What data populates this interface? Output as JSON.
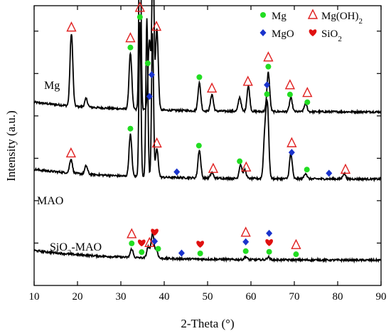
{
  "chart_data": {
    "type": "line",
    "xlabel": "2-Theta (°)",
    "ylabel": "Intensity (a.u.)",
    "xlim": [
      10,
      90
    ],
    "x_ticks": [
      10,
      20,
      30,
      40,
      50,
      60,
      70,
      80,
      90
    ],
    "y_ticks_labeled": false,
    "legend": {
      "placement": "top-right",
      "entries": [
        {
          "name": "Mg",
          "marker": "circle",
          "color": "#22dd22"
        },
        {
          "name": "Mg(OH)2",
          "name_base": "Mg(OH)",
          "name_sub": "2",
          "marker": "triangle-open",
          "color": "#e02020"
        },
        {
          "name": "MgO",
          "marker": "diamond",
          "color": "#1a33cc"
        },
        {
          "name": "SiO2",
          "name_base": "SiO",
          "name_sub": "2",
          "marker": "heart",
          "color": "#e01010"
        }
      ]
    },
    "series": [
      {
        "name": "Mg",
        "label_base": "Mg",
        "label_sub": "",
        "baseline": 0.62,
        "peaks": [
          [
            18.6,
            0.26
          ],
          [
            22.0,
            0.03
          ],
          [
            32.2,
            0.2
          ],
          [
            34.4,
            0.77
          ],
          [
            36.6,
            0.25
          ],
          [
            37.4,
            0.58
          ],
          [
            38.3,
            0.29
          ],
          [
            48.1,
            0.1
          ],
          [
            51.0,
            0.06
          ],
          [
            57.4,
            0.05
          ],
          [
            59.4,
            0.09
          ],
          [
            64.0,
            0.14
          ],
          [
            69.2,
            0.05
          ],
          [
            72.6,
            0.03
          ]
        ],
        "markers": [
          {
            "x": 32.2,
            "types": [
              "Mg(OH)2",
              "Mg"
            ]
          },
          {
            "x": 34.4,
            "types": [
              "Mg"
            ]
          },
          {
            "x": 36.6,
            "types": [
              "MgO"
            ],
            "below": true
          },
          {
            "x": 37.3,
            "types": [
              "Mg"
            ]
          },
          {
            "x": 18.6,
            "types": [
              "Mg(OH)2"
            ]
          },
          {
            "x": 38.2,
            "types": [
              "Mg(OH)2"
            ]
          },
          {
            "x": 48.1,
            "types": [
              "Mg"
            ]
          },
          {
            "x": 51.0,
            "types": [
              "Mg(OH)2"
            ]
          },
          {
            "x": 59.3,
            "types": [
              "Mg(OH)2"
            ]
          },
          {
            "x": 64.0,
            "types": [
              "Mg(OH)2",
              "Mg"
            ]
          },
          {
            "x": 69.0,
            "types": [
              "Mg(OH)2",
              "Mg"
            ]
          },
          {
            "x": 73.0,
            "types": [
              "Mg(OH)2",
              "Mg"
            ]
          }
        ]
      },
      {
        "name": "MAO",
        "label_base": "MAO",
        "label_sub": "",
        "baseline": 0.38,
        "peaks": [
          [
            18.5,
            0.05
          ],
          [
            22.0,
            0.03
          ],
          [
            32.2,
            0.15
          ],
          [
            34.4,
            0.55
          ],
          [
            36.0,
            0.57
          ],
          [
            37.3,
            0.51
          ],
          [
            38.3,
            0.1
          ],
          [
            48.1,
            0.1
          ],
          [
            51.0,
            0.02
          ],
          [
            57.6,
            0.05
          ],
          [
            58.6,
            0.03
          ],
          [
            63.2,
            0.15
          ],
          [
            63.8,
            0.25
          ],
          [
            69.2,
            0.09
          ],
          [
            72.6,
            0.02
          ],
          [
            81.5,
            0.02
          ]
        ],
        "markers": [
          {
            "x": 18.5,
            "types": [
              "Mg(OH)2"
            ]
          },
          {
            "x": 32.2,
            "types": [
              "Mg"
            ]
          },
          {
            "x": 34.4,
            "types": [
              "Mg(OH)2",
              "Mg"
            ]
          },
          {
            "x": 36.2,
            "types": [
              "Mg"
            ]
          },
          {
            "x": 37.1,
            "types": [
              "MgO"
            ]
          },
          {
            "x": 38.3,
            "types": [
              "Mg(OH)2"
            ]
          },
          {
            "x": 42.9,
            "types": [
              "MgO"
            ]
          },
          {
            "x": 48.0,
            "types": [
              "Mg"
            ]
          },
          {
            "x": 51.3,
            "types": [
              "Mg(OH)2"
            ]
          },
          {
            "x": 57.4,
            "types": [
              "Mg"
            ]
          },
          {
            "x": 58.9,
            "types": [
              "Mg(OH)2"
            ]
          },
          {
            "x": 63.7,
            "types": [
              "MgO",
              "Mg"
            ]
          },
          {
            "x": 69.4,
            "types": [
              "Mg(OH)2",
              "MgO"
            ]
          },
          {
            "x": 72.9,
            "types": [
              "Mg"
            ]
          },
          {
            "x": 78.0,
            "types": [
              "MgO"
            ]
          },
          {
            "x": 81.8,
            "types": [
              "Mg(OH)2"
            ]
          }
        ]
      },
      {
        "name": "SiO2-MAO",
        "label_base": "SiO",
        "label_sub": "2",
        "label_suffix": "-MAO",
        "baseline": 0.09,
        "peaks": [
          [
            32.5,
            0.03
          ],
          [
            36.3,
            0.04
          ],
          [
            37.3,
            0.09
          ],
          [
            38.2,
            0.03
          ],
          [
            58.8,
            0.01
          ],
          [
            64.0,
            0.01
          ]
        ],
        "markers": [
          {
            "x": 32.5,
            "types": [
              "Mg(OH)2",
              "Mg"
            ]
          },
          {
            "x": 34.8,
            "types": [
              "SiO2",
              "Mg"
            ]
          },
          {
            "x": 36.6,
            "types": [
              "Mg(OH)2"
            ]
          },
          {
            "x": 37.8,
            "types": [
              "SiO2",
              "MgO"
            ]
          },
          {
            "x": 38.6,
            "types": [
              "Mg"
            ]
          },
          {
            "x": 44.0,
            "types": [
              "MgO"
            ]
          },
          {
            "x": 48.3,
            "types": [
              "SiO2",
              "Mg"
            ]
          },
          {
            "x": 58.8,
            "types": [
              "Mg(OH)2",
              "MgO",
              "Mg"
            ]
          },
          {
            "x": 64.2,
            "types": [
              "MgO",
              "SiO2",
              "Mg"
            ]
          },
          {
            "x": 70.4,
            "types": [
              "Mg(OH)2",
              "Mg"
            ]
          }
        ]
      }
    ]
  }
}
